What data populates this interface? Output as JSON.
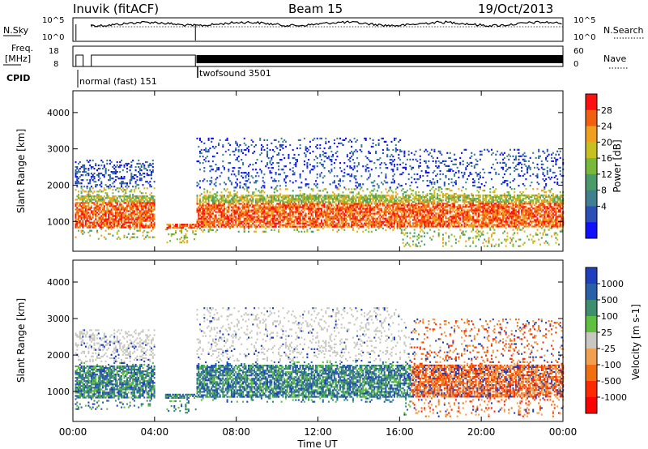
{
  "header": {
    "station": "Inuvik (fitACF)",
    "beam": "Beam 15",
    "date": "19/Oct/2013"
  },
  "summary_panels": {
    "nsky_label": "N.Sky",
    "nsky_ticks": [
      "10^5",
      "10^0"
    ],
    "nsearch_label": "N.Search",
    "nsearch_ticks": [
      "10^5",
      "10^0"
    ],
    "freq_label": "Freq.",
    "freq_unit": "[MHz]",
    "freq_ticks": [
      "18",
      "8"
    ],
    "nave_label": "Nave",
    "nave_ticks": [
      "60",
      "0"
    ],
    "cpid_label": "CPID",
    "cpid_segments": [
      {
        "label": "normal (fast) 151",
        "start_ut": 0.9,
        "end_ut": 6.0
      },
      {
        "label": "twofsound 3501",
        "start_ut": 6.0,
        "end_ut": 24.0
      }
    ]
  },
  "chart_data": [
    {
      "type": "heatmap",
      "title": "",
      "xlabel": "",
      "ylabel": "Slant Range [km]",
      "x_ticks": [
        "00:00",
        "04:00",
        "08:00",
        "12:00",
        "16:00",
        "20:00",
        "00:00"
      ],
      "y_ticks": [
        "1000",
        "2000",
        "3000",
        "4000"
      ],
      "xlim": [
        0,
        24
      ],
      "ylim": [
        180,
        4600
      ],
      "colorbar": {
        "label": "Power [dB]",
        "ticks": [
          "4",
          "8",
          "12",
          "16",
          "20",
          "24",
          "28"
        ],
        "colors": [
          "#1010ff",
          "#2a50b8",
          "#3f7f8f",
          "#4a9a6a",
          "#78b83a",
          "#c8c020",
          "#f0a020",
          "#f06010",
          "#ff1010"
        ]
      }
    },
    {
      "type": "heatmap",
      "title": "",
      "xlabel": "Time UT",
      "ylabel": "Slant Range [km]",
      "x_ticks": [
        "00:00",
        "04:00",
        "08:00",
        "12:00",
        "16:00",
        "20:00",
        "00:00"
      ],
      "y_ticks": [
        "1000",
        "2000",
        "3000",
        "4000"
      ],
      "xlim": [
        0,
        24
      ],
      "ylim": [
        180,
        4600
      ],
      "colorbar": {
        "label": "Velocity [m s-1]",
        "ticks": [
          "1000",
          "500",
          "100",
          "25",
          "-25",
          "-100",
          "-500",
          "-1000"
        ],
        "colors": [
          "#1f3fbf",
          "#2a60a8",
          "#3f8f6f",
          "#5fc040",
          "#c8c8c0",
          "#f0a050",
          "#f07010",
          "#ff2a00",
          "#ff0000"
        ]
      }
    }
  ]
}
